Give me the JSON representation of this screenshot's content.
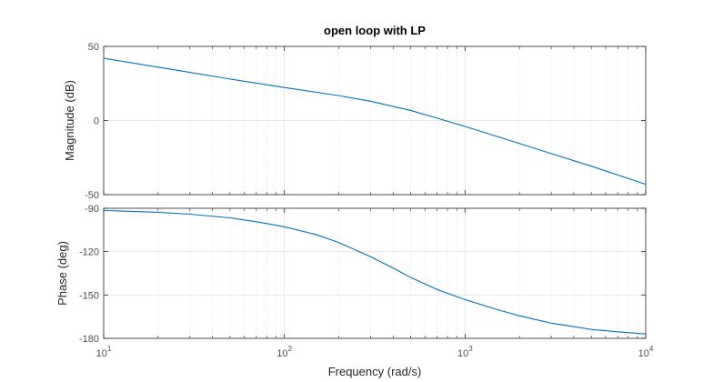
{
  "chart_data": {
    "type": "line",
    "title": "open loop with LP",
    "xlabel": "Frequency  (rad/s)",
    "x_scale": "log",
    "xlim": [
      10,
      10000
    ],
    "x_tick_labels": [
      {
        "base": "10",
        "exp": "1"
      },
      {
        "base": "10",
        "exp": "2"
      },
      {
        "base": "10",
        "exp": "3"
      },
      {
        "base": "10",
        "exp": "4"
      }
    ],
    "grid": true,
    "line_color": "#0072BD",
    "subplots": [
      {
        "name": "magnitude",
        "ylabel": "Magnitude (dB)",
        "ylim": [
          -50,
          50
        ],
        "yticks": [
          {
            "value": -50,
            "label": "-50"
          },
          {
            "value": 0,
            "label": "0"
          },
          {
            "value": 50,
            "label": "50"
          }
        ],
        "x": [
          10,
          20,
          30,
          50,
          100,
          200,
          300,
          500,
          700,
          1000,
          2000,
          3000,
          5000,
          10000
        ],
        "y": [
          42,
          36,
          32.5,
          28,
          22.3,
          16.8,
          13,
          6.8,
          1.6,
          -4,
          -15.5,
          -22.3,
          -30.8,
          -43
        ]
      },
      {
        "name": "phase",
        "ylabel": "Phase (deg)",
        "ylim": [
          -180,
          -90
        ],
        "yticks": [
          {
            "value": -90,
            "label": "-90"
          },
          {
            "value": -120,
            "label": "-120"
          },
          {
            "value": -150,
            "label": "-150"
          },
          {
            "value": -180,
            "label": "-180"
          }
        ],
        "x": [
          10,
          20,
          30,
          50,
          70,
          100,
          150,
          200,
          300,
          400,
          500,
          700,
          1000,
          1500,
          2000,
          3000,
          5000,
          7000,
          10000
        ],
        "y": [
          -91.5,
          -92.8,
          -94.1,
          -96.6,
          -99.3,
          -102.8,
          -108.2,
          -113.7,
          -123.5,
          -131.4,
          -137.8,
          -146.2,
          -153.2,
          -160,
          -164.4,
          -169.5,
          -173.8,
          -175.5,
          -177
        ]
      }
    ]
  }
}
